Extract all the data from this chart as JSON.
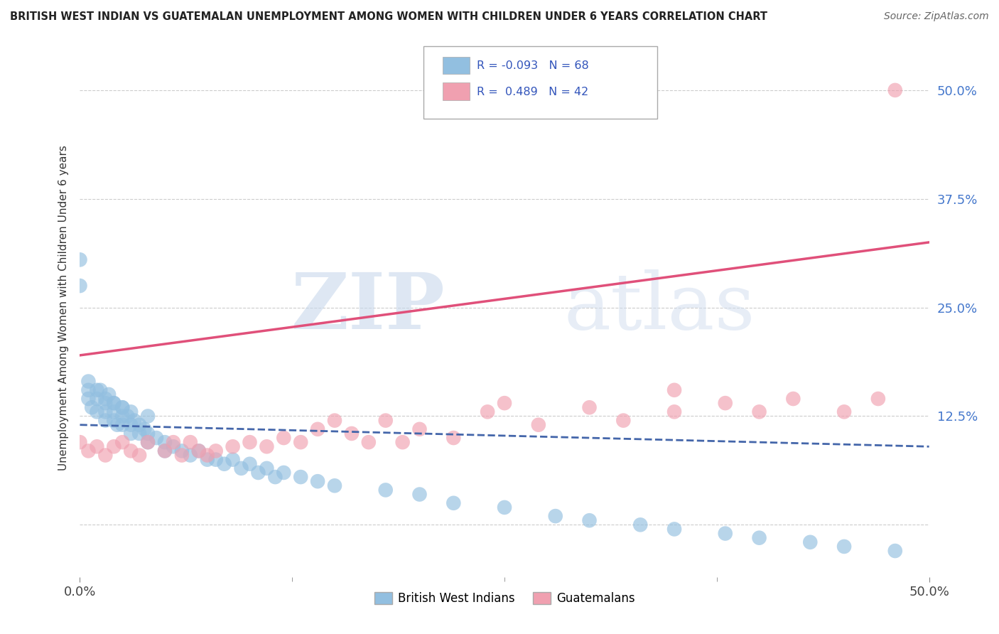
{
  "title": "BRITISH WEST INDIAN VS GUATEMALAN UNEMPLOYMENT AMONG WOMEN WITH CHILDREN UNDER 6 YEARS CORRELATION CHART",
  "source": "Source: ZipAtlas.com",
  "ylabel": "Unemployment Among Women with Children Under 6 years",
  "xmin": 0.0,
  "xmax": 0.5,
  "ymin": -0.06,
  "ymax": 0.56,
  "ytick_vals": [
    0.0,
    0.125,
    0.25,
    0.375,
    0.5
  ],
  "ytick_labels_right": [
    "",
    "12.5%",
    "25.0%",
    "37.5%",
    "50.0%"
  ],
  "xtick_vals": [
    0.0,
    0.5
  ],
  "xtick_labels": [
    "0.0%",
    "50.0%"
  ],
  "blue_color": "#92BFE0",
  "pink_color": "#F0A0B0",
  "blue_line_color": "#4466AA",
  "pink_line_color": "#E0507A",
  "right_axis_color": "#4477CC",
  "legend_r_blue": "-0.093",
  "legend_n_blue": "68",
  "legend_r_pink": "0.489",
  "legend_n_pink": "42",
  "legend_label_blue": "British West Indians",
  "legend_label_pink": "Guatemalans",
  "watermark_zip": "ZIP",
  "watermark_atlas": "atlas",
  "background_color": "#FFFFFF",
  "grid_color": "#CCCCCC",
  "blue_scatter_x": [
    0.0,
    0.0,
    0.005,
    0.005,
    0.005,
    0.007,
    0.01,
    0.01,
    0.01,
    0.012,
    0.015,
    0.015,
    0.015,
    0.017,
    0.02,
    0.02,
    0.02,
    0.022,
    0.025,
    0.025,
    0.025,
    0.028,
    0.03,
    0.03,
    0.032,
    0.035,
    0.035,
    0.038,
    0.04,
    0.04,
    0.045,
    0.05,
    0.05,
    0.055,
    0.06,
    0.065,
    0.07,
    0.075,
    0.08,
    0.085,
    0.09,
    0.095,
    0.1,
    0.105,
    0.11,
    0.115,
    0.12,
    0.13,
    0.14,
    0.15,
    0.18,
    0.2,
    0.22,
    0.25,
    0.28,
    0.3,
    0.33,
    0.35,
    0.38,
    0.4,
    0.43,
    0.45,
    0.48,
    0.015,
    0.02,
    0.025,
    0.03,
    0.04
  ],
  "blue_scatter_y": [
    0.305,
    0.275,
    0.165,
    0.155,
    0.145,
    0.135,
    0.155,
    0.145,
    0.13,
    0.155,
    0.14,
    0.13,
    0.12,
    0.15,
    0.14,
    0.13,
    0.12,
    0.115,
    0.135,
    0.125,
    0.115,
    0.125,
    0.115,
    0.105,
    0.12,
    0.115,
    0.105,
    0.11,
    0.105,
    0.095,
    0.1,
    0.095,
    0.085,
    0.09,
    0.085,
    0.08,
    0.085,
    0.075,
    0.075,
    0.07,
    0.075,
    0.065,
    0.07,
    0.06,
    0.065,
    0.055,
    0.06,
    0.055,
    0.05,
    0.045,
    0.04,
    0.035,
    0.025,
    0.02,
    0.01,
    0.005,
    0.0,
    -0.005,
    -0.01,
    -0.015,
    -0.02,
    -0.025,
    -0.03,
    0.145,
    0.14,
    0.135,
    0.13,
    0.125
  ],
  "pink_scatter_x": [
    0.0,
    0.005,
    0.01,
    0.015,
    0.02,
    0.025,
    0.03,
    0.035,
    0.04,
    0.05,
    0.055,
    0.06,
    0.065,
    0.07,
    0.075,
    0.08,
    0.09,
    0.1,
    0.11,
    0.12,
    0.13,
    0.14,
    0.15,
    0.16,
    0.17,
    0.18,
    0.19,
    0.2,
    0.22,
    0.24,
    0.25,
    0.27,
    0.3,
    0.32,
    0.35,
    0.38,
    0.4,
    0.42,
    0.45,
    0.47,
    0.48,
    0.35
  ],
  "pink_scatter_y": [
    0.095,
    0.085,
    0.09,
    0.08,
    0.09,
    0.095,
    0.085,
    0.08,
    0.095,
    0.085,
    0.095,
    0.08,
    0.095,
    0.085,
    0.08,
    0.085,
    0.09,
    0.095,
    0.09,
    0.1,
    0.095,
    0.11,
    0.12,
    0.105,
    0.095,
    0.12,
    0.095,
    0.11,
    0.1,
    0.13,
    0.14,
    0.115,
    0.135,
    0.12,
    0.13,
    0.14,
    0.13,
    0.145,
    0.13,
    0.145,
    0.5,
    0.155
  ],
  "pink_line_x": [
    0.0,
    0.5
  ],
  "pink_line_y": [
    0.195,
    0.325
  ],
  "blue_line_x": [
    0.0,
    0.5
  ],
  "blue_line_y": [
    0.115,
    0.09
  ]
}
